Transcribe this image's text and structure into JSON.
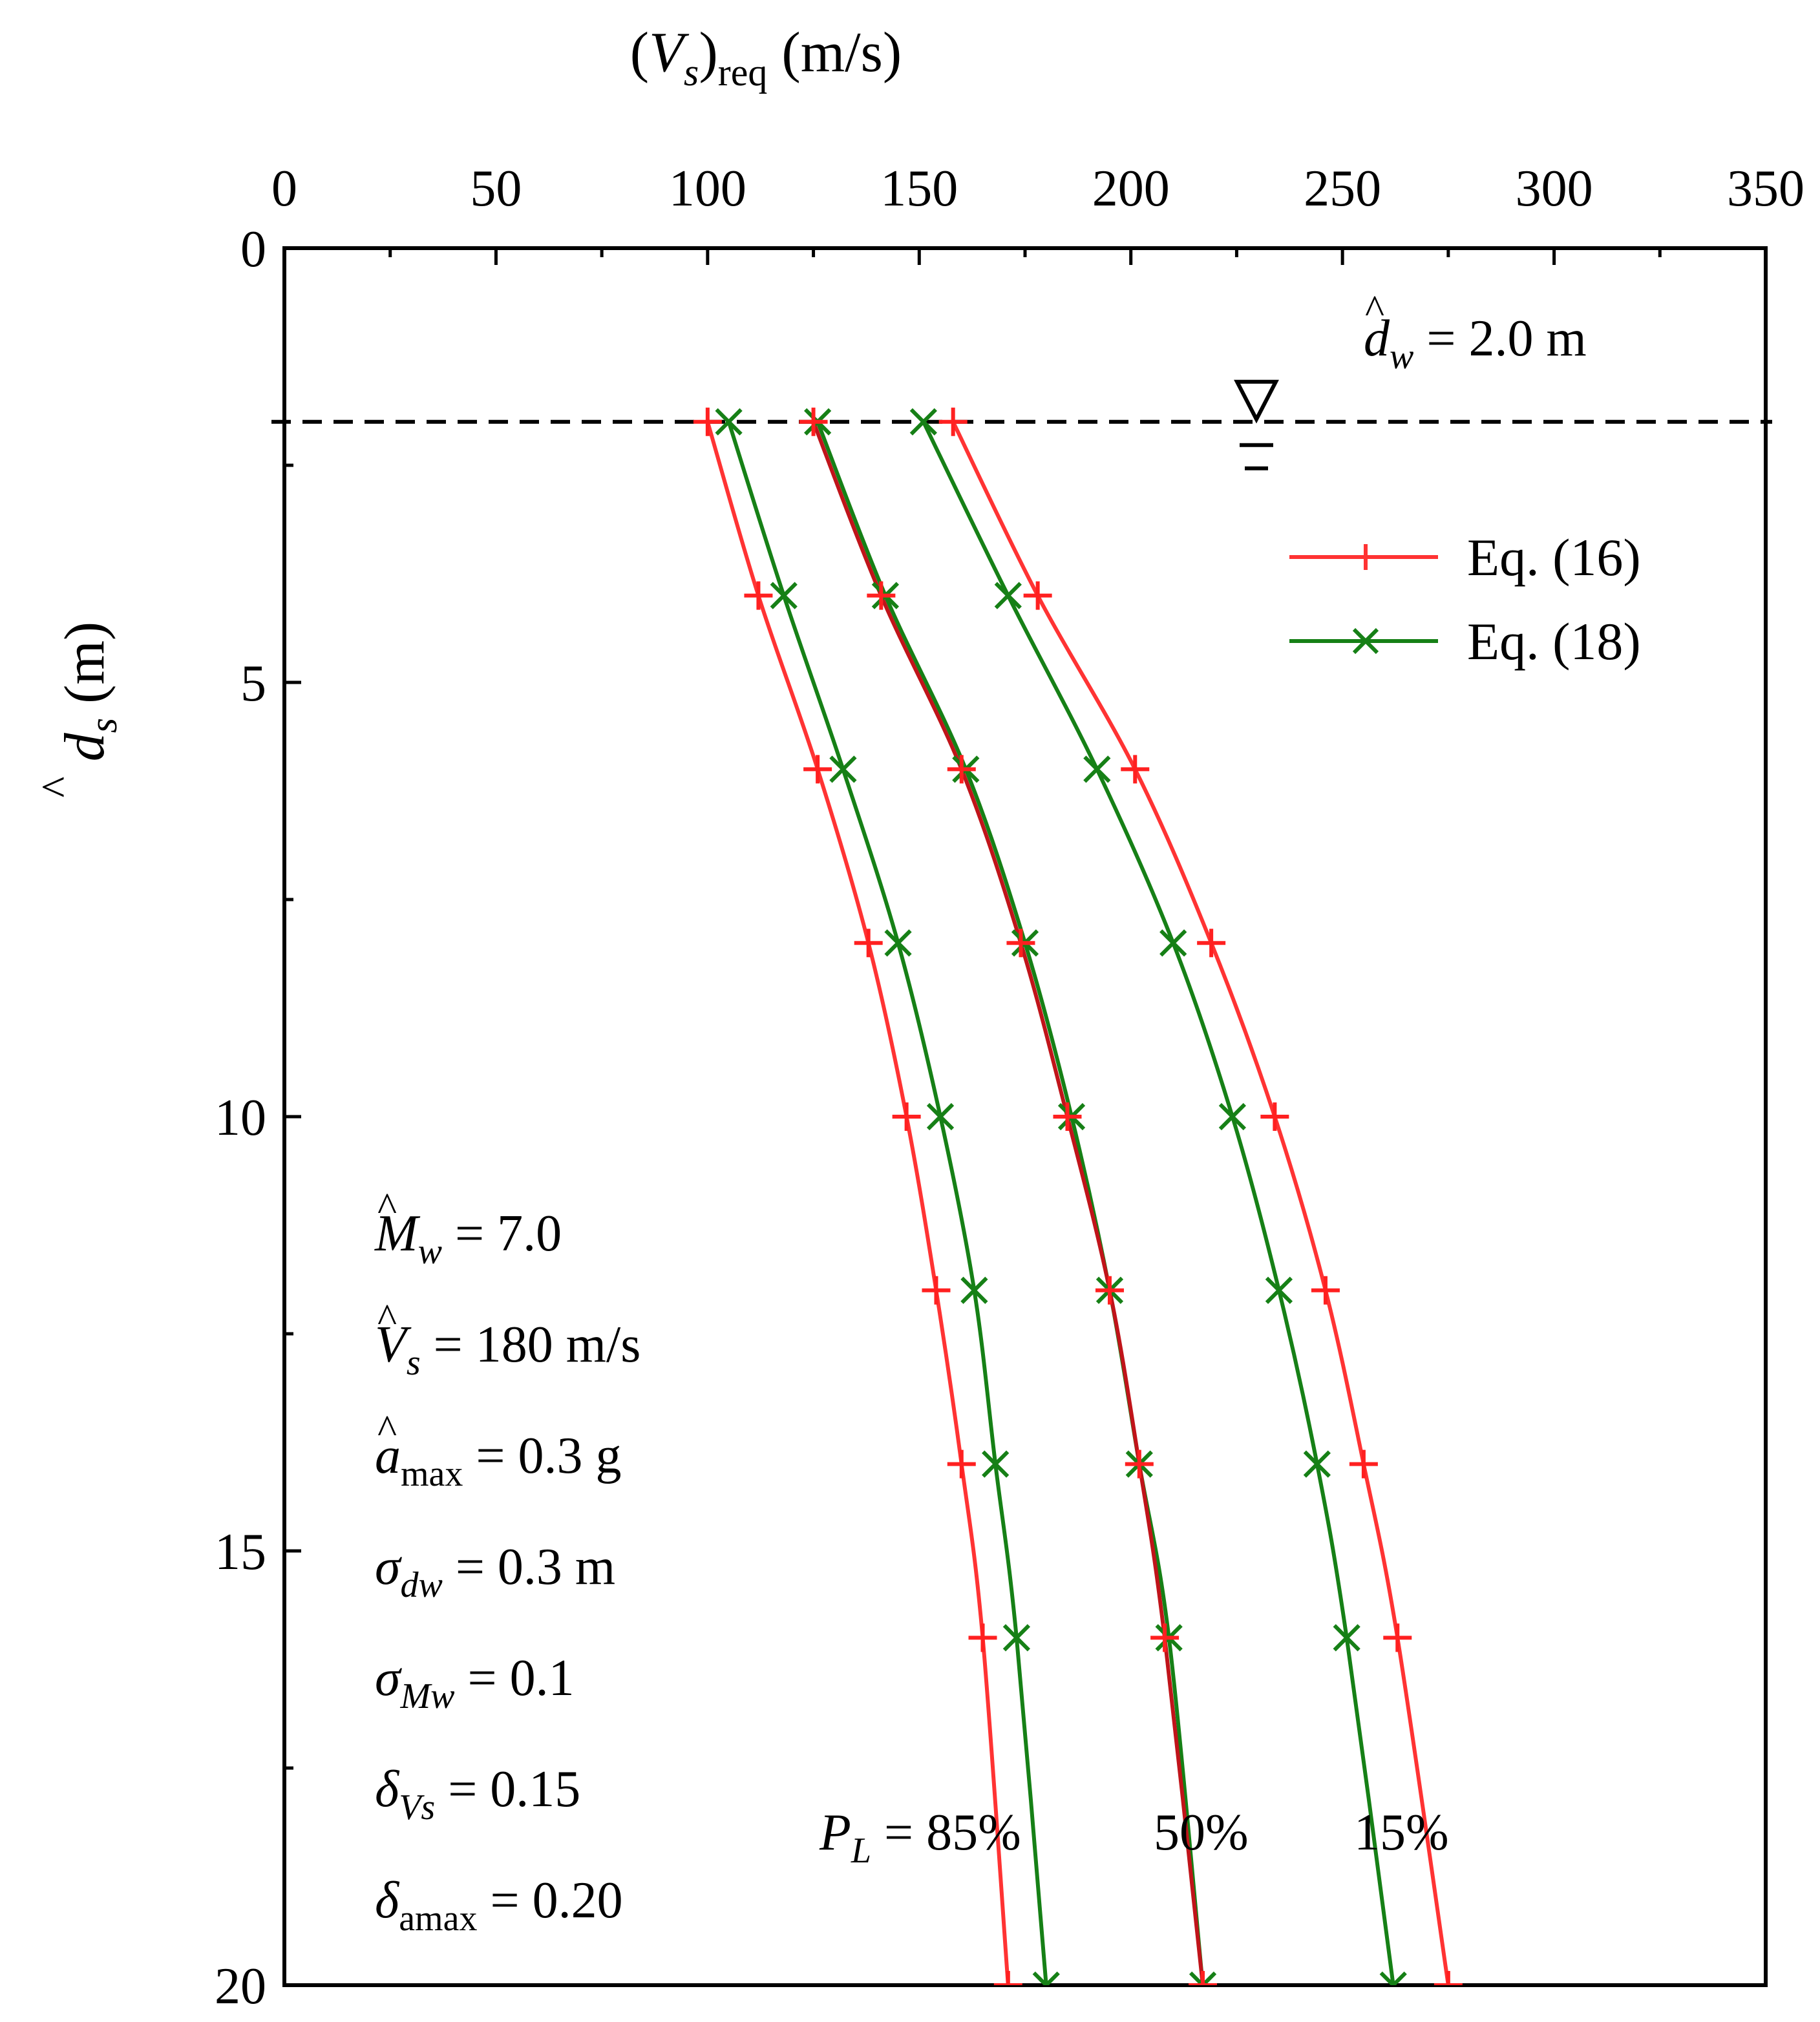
{
  "chart_data": {
    "type": "line",
    "x_axis": {
      "label_base": "V",
      "label_sub": "s",
      "label_sub2": "req",
      "label_unit": " (m/s)",
      "range": [
        0,
        350
      ],
      "ticks": [
        0,
        50,
        100,
        150,
        200,
        250,
        300,
        350
      ],
      "tick_labels": [
        "0",
        "50",
        "100",
        "150",
        "200",
        "250",
        "300",
        "350"
      ],
      "position": "top"
    },
    "y_axis": {
      "label_base": "d",
      "label_sub": "s",
      "label_unit": " (m)",
      "range": [
        0,
        20
      ],
      "inverted": true,
      "ticks": [
        0,
        5,
        10,
        15,
        20
      ],
      "tick_labels": [
        "0",
        "5",
        "10",
        "15",
        "20"
      ],
      "minor_ticks": [
        2.5,
        7.5,
        12.5,
        17.5
      ]
    },
    "grid": false,
    "legend": {
      "placement": "top-right",
      "entries": [
        {
          "label": "Eq. (16)",
          "color": "#ff3333",
          "marker": "plus"
        },
        {
          "label": "Eq. (18)",
          "color": "#168016",
          "marker": "x"
        }
      ]
    },
    "water_table": {
      "depth": 2.0,
      "label_base": "d",
      "label_sub": "w",
      "label_value": " = 2.0 m"
    },
    "parameters": [
      {
        "sym": "M",
        "hat": true,
        "sub": "w",
        "sub_italic": true,
        "val": " = 7.0"
      },
      {
        "sym": "V",
        "hat": true,
        "sub": "s",
        "sub_italic": true,
        "val": " = 180 m/s"
      },
      {
        "sym": "a",
        "hat": true,
        "sub": "max",
        "sub_italic": false,
        "val": " = 0.3 g"
      },
      {
        "sym": "σ",
        "hat": false,
        "sub": "dw",
        "sub_italic": true,
        "val": " = 0.3 m"
      },
      {
        "sym": "σ",
        "hat": false,
        "sub": "Mw",
        "sub_italic": true,
        "val": " = 0.1"
      },
      {
        "sym": "δ",
        "hat": false,
        "sub": "Vs",
        "sub_italic": true,
        "val": " = 0.15"
      },
      {
        "sym": "δ",
        "hat": false,
        "sub": "amax",
        "sub_italic": false,
        "val": " = 0.20"
      }
    ],
    "curve_labels": {
      "pl_base": "P",
      "pl_sub": "L",
      "items": [
        " = 85%",
        "50%",
        "15%"
      ]
    },
    "series": [
      {
        "name": "Eq. (16)",
        "PL": "85%",
        "color": "#ff3333",
        "marker": "plus",
        "points": [
          [
            100,
            2
          ],
          [
            112,
            4
          ],
          [
            126,
            6
          ],
          [
            138,
            8
          ],
          [
            147,
            10
          ],
          [
            154,
            12
          ],
          [
            160,
            14
          ],
          [
            165,
            16
          ],
          [
            171,
            20
          ]
        ]
      },
      {
        "name": "Eq. (16)",
        "PL": "50%",
        "color": "#c0141a",
        "marker": "plus",
        "points": [
          [
            125,
            2
          ],
          [
            141,
            4
          ],
          [
            160,
            6
          ],
          [
            174,
            8
          ],
          [
            185,
            10
          ],
          [
            195,
            12
          ],
          [
            202,
            14
          ],
          [
            208,
            16
          ],
          [
            217,
            20
          ]
        ]
      },
      {
        "name": "Eq. (16)",
        "PL": "15%",
        "color": "#ff3333",
        "marker": "plus",
        "points": [
          [
            158,
            2
          ],
          [
            178,
            4
          ],
          [
            201,
            6
          ],
          [
            219,
            8
          ],
          [
            234,
            10
          ],
          [
            246,
            12
          ],
          [
            255,
            14
          ],
          [
            263,
            16
          ],
          [
            275,
            20
          ]
        ]
      },
      {
        "name": "Eq. (18)",
        "PL": "85%",
        "color": "#168016",
        "marker": "x",
        "points": [
          [
            105,
            2
          ],
          [
            118,
            4
          ],
          [
            132,
            6
          ],
          [
            145,
            8
          ],
          [
            155,
            10
          ],
          [
            163,
            12
          ],
          [
            168,
            14
          ],
          [
            173,
            16
          ],
          [
            180,
            20
          ]
        ]
      },
      {
        "name": "Eq. (18)",
        "PL": "50%",
        "color": "#168016",
        "marker": "x",
        "points": [
          [
            126,
            2
          ],
          [
            142,
            4
          ],
          [
            161,
            6
          ],
          [
            175,
            8
          ],
          [
            186,
            10
          ],
          [
            195,
            12
          ],
          [
            202,
            14
          ],
          [
            209,
            16
          ],
          [
            217,
            20
          ]
        ]
      },
      {
        "name": "Eq. (18)",
        "PL": "15%",
        "color": "#168016",
        "marker": "x",
        "points": [
          [
            151,
            2
          ],
          [
            171,
            4
          ],
          [
            192,
            6
          ],
          [
            210,
            8
          ],
          [
            224,
            10
          ],
          [
            235,
            12
          ],
          [
            244,
            14
          ],
          [
            251,
            16
          ],
          [
            262,
            20
          ]
        ]
      }
    ]
  }
}
